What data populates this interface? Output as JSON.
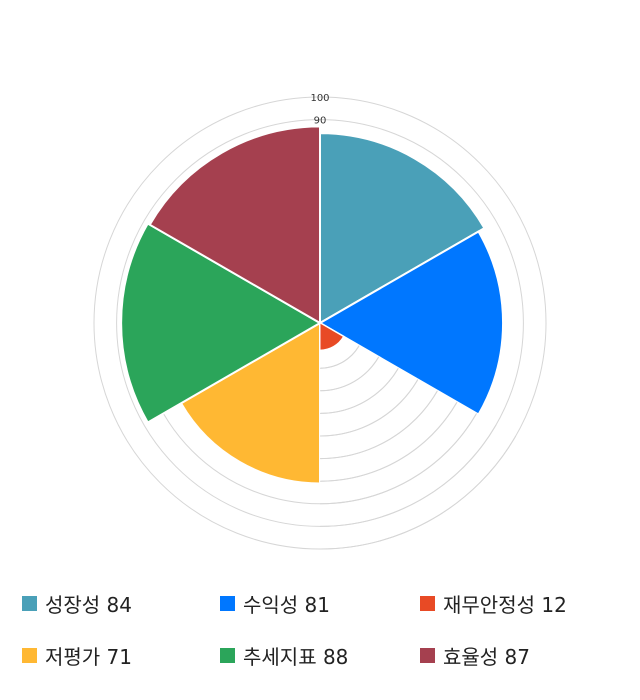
{
  "chart_data": {
    "type": "polar-area",
    "title": "",
    "axis": {
      "max": 100,
      "ring_step": 10,
      "tick_labels": [
        "100",
        "90"
      ]
    },
    "series": [
      {
        "name": "성장성",
        "value": 84,
        "color": "#4aa0b8"
      },
      {
        "name": "수익성",
        "value": 81,
        "color": "#0077ff"
      },
      {
        "name": "재무안정성",
        "value": 12,
        "color": "#e84a25"
      },
      {
        "name": "저평가",
        "value": 71,
        "color": "#ffb833"
      },
      {
        "name": "추세지표",
        "value": 88,
        "color": "#2ba55a"
      },
      {
        "name": "효율성",
        "value": 87,
        "color": "#a5404f"
      }
    ],
    "legend": {
      "position": "bottom",
      "items": [
        "성장성 84",
        "수익성 81",
        "재무안정성 12",
        "저평가 71",
        "추세지표 88",
        "효율성 87"
      ]
    },
    "grid": true
  }
}
